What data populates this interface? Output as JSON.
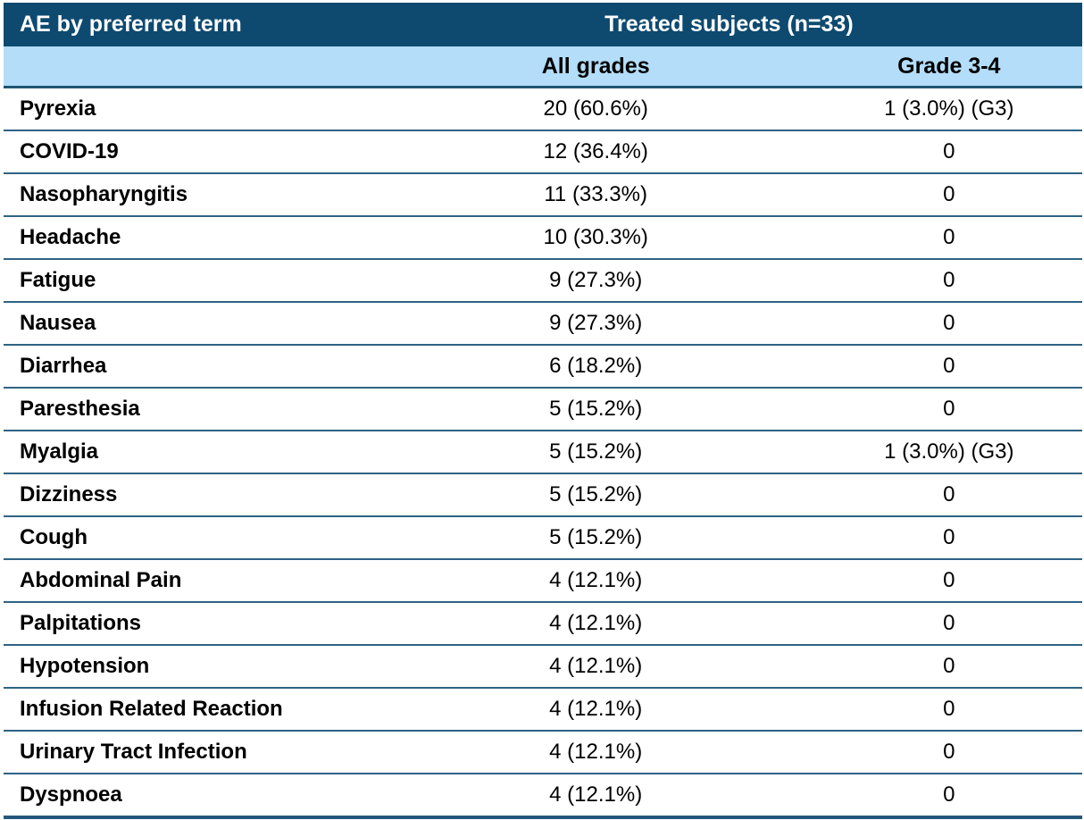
{
  "colors": {
    "header_bg": "#0E4A70",
    "header_text": "#FFFFFF",
    "subheader_bg": "#B3DDF8",
    "row_divider": "#2E6384",
    "header_underline": "#1F5570",
    "bottom_border": "#25587A",
    "body_text": "#000000"
  },
  "chart_data": {
    "type": "table",
    "header": {
      "col1": "AE by preferred term",
      "group": "Treated subjects (n=33)",
      "sub": [
        "All grades",
        "Grade 3-4"
      ]
    },
    "rows": [
      {
        "term": "Pyrexia",
        "all_grades": "20 (60.6%)",
        "grade_3_4": "1 (3.0%) (G3)"
      },
      {
        "term": "COVID-19",
        "all_grades": "12 (36.4%)",
        "grade_3_4": "0"
      },
      {
        "term": "Nasopharyngitis",
        "all_grades": "11 (33.3%)",
        "grade_3_4": "0"
      },
      {
        "term": "Headache",
        "all_grades": "10 (30.3%)",
        "grade_3_4": "0"
      },
      {
        "term": "Fatigue",
        "all_grades": "9 (27.3%)",
        "grade_3_4": "0"
      },
      {
        "term": "Nausea",
        "all_grades": "9 (27.3%)",
        "grade_3_4": "0"
      },
      {
        "term": "Diarrhea",
        "all_grades": "6 (18.2%)",
        "grade_3_4": "0"
      },
      {
        "term": "Paresthesia",
        "all_grades": "5 (15.2%)",
        "grade_3_4": "0"
      },
      {
        "term": "Myalgia",
        "all_grades": "5 (15.2%)",
        "grade_3_4": "1 (3.0%) (G3)"
      },
      {
        "term": "Dizziness",
        "all_grades": "5 (15.2%)",
        "grade_3_4": "0"
      },
      {
        "term": "Cough",
        "all_grades": "5 (15.2%)",
        "grade_3_4": "0"
      },
      {
        "term": "Abdominal Pain",
        "all_grades": "4 (12.1%)",
        "grade_3_4": "0"
      },
      {
        "term": "Palpitations",
        "all_grades": "4 (12.1%)",
        "grade_3_4": "0"
      },
      {
        "term": "Hypotension",
        "all_grades": "4 (12.1%)",
        "grade_3_4": "0"
      },
      {
        "term": "Infusion Related Reaction",
        "all_grades": "4 (12.1%)",
        "grade_3_4": "0"
      },
      {
        "term": "Urinary Tract Infection",
        "all_grades": "4 (12.1%)",
        "grade_3_4": "0"
      },
      {
        "term": "Dyspnoea",
        "all_grades": "4 (12.1%)",
        "grade_3_4": "0"
      }
    ]
  }
}
